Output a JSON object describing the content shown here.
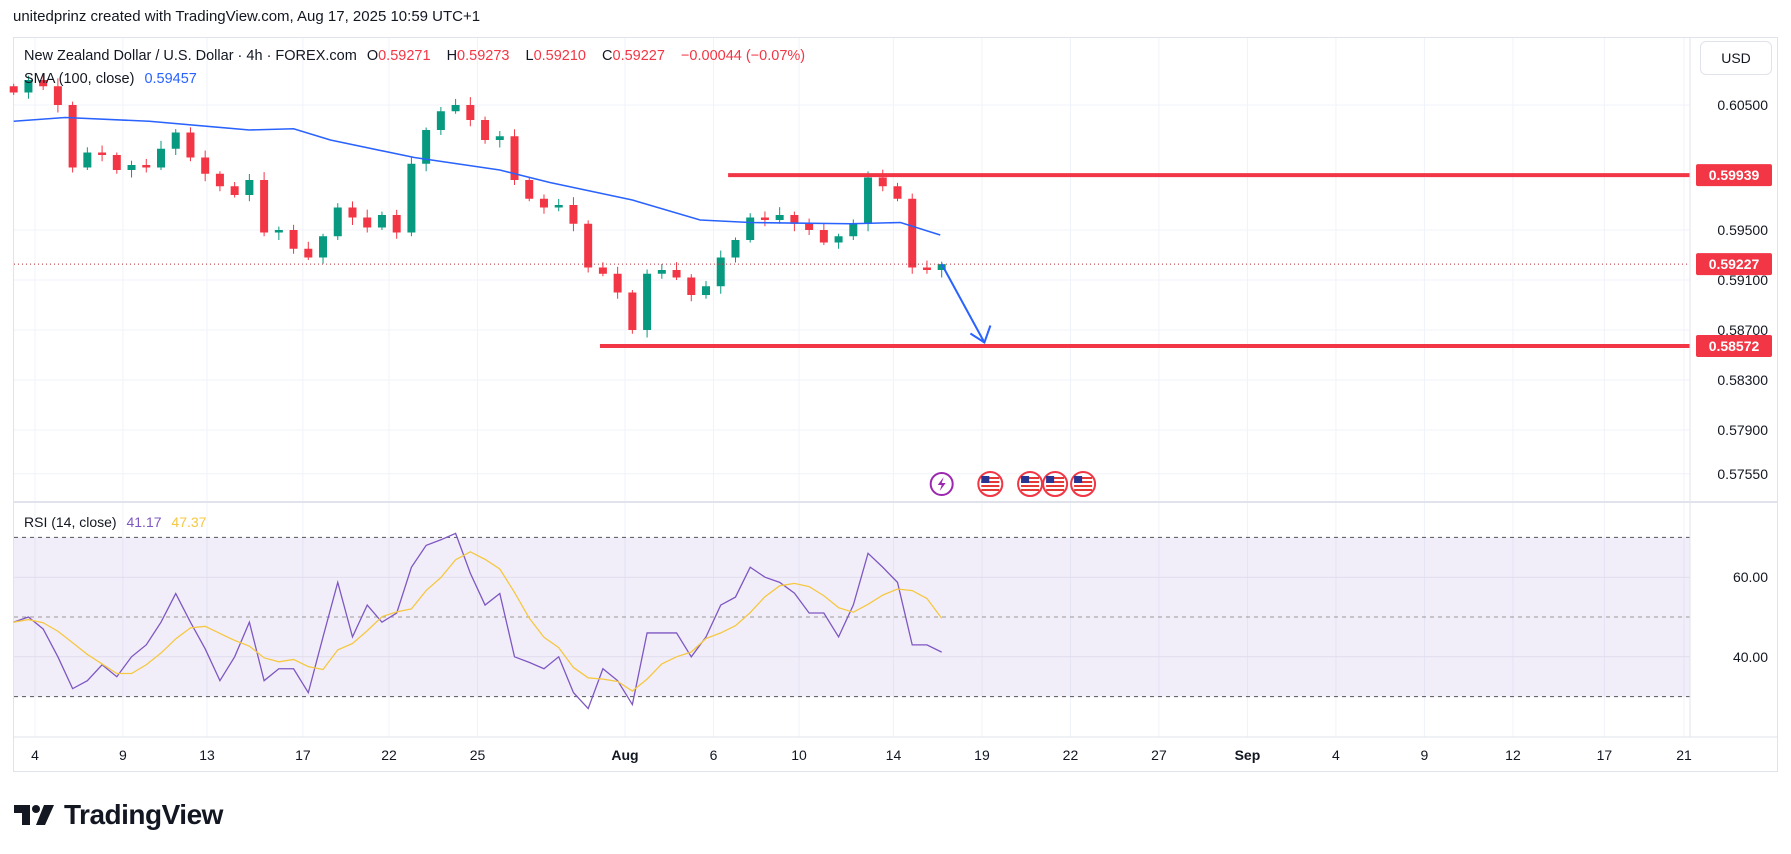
{
  "credit": "unitedprinz created with TradingView.com, Aug 17, 2025 10:59 UTC+1",
  "symbol": {
    "title": "New Zealand Dollar / U.S. Dollar · 4h · FOREX.com",
    "o_label": "O",
    "o": "0.59271",
    "h_label": "H",
    "h": "0.59273",
    "l_label": "L",
    "l": "0.59210",
    "c_label": "C",
    "c": "0.59227",
    "change": "−0.00044 (−0.07%)"
  },
  "sma_legend": {
    "label": "SMA (100, close)",
    "value": "0.59457"
  },
  "rsi_legend": {
    "label": "RSI (14, close)",
    "value": "41.17",
    "signal": "47.37"
  },
  "currency_button": "USD",
  "logo_text": "TradingView",
  "colors": {
    "up": "#089981",
    "down": "#f23645",
    "sma": "#2962ff",
    "rsi": "#7e57c2",
    "signal": "#f5c842",
    "level": "#f23645",
    "arrow": "#2962ff"
  },
  "chart_data": [
    {
      "type": "candlestick",
      "title": "New Zealand Dollar / U.S. Dollar · 4h · FOREX.com",
      "bar_spacing_days": 0.5,
      "closes": [
        0.606,
        0.607,
        0.6065,
        0.605,
        0.6,
        0.6012,
        0.601,
        0.5998,
        0.6002,
        0.6,
        0.6015,
        0.6028,
        0.6008,
        0.5995,
        0.5985,
        0.5978,
        0.599,
        0.5948,
        0.595,
        0.5935,
        0.5928,
        0.5945,
        0.5968,
        0.596,
        0.5952,
        0.5962,
        0.5948,
        0.6003,
        0.603,
        0.6045,
        0.605,
        0.6038,
        0.6022,
        0.6025,
        0.599,
        0.5975,
        0.5968,
        0.597,
        0.5955,
        0.592,
        0.5915,
        0.59,
        0.587,
        0.5915,
        0.5918,
        0.5912,
        0.5898,
        0.5905,
        0.5928,
        0.5942,
        0.596,
        0.5958,
        0.5962,
        0.5955,
        0.595,
        0.594,
        0.5945,
        0.5955,
        0.5992,
        0.5985,
        0.5975,
        0.592,
        0.5918,
        0.59227
      ],
      "sma100": [
        [
          0,
          0.6037
        ],
        [
          3.5,
          0.604
        ],
        [
          9.2,
          0.6037
        ],
        [
          16,
          0.603
        ],
        [
          19,
          0.6031
        ],
        [
          21.5,
          0.6022
        ],
        [
          27.2,
          0.6008
        ],
        [
          33,
          0.5998
        ],
        [
          36.4,
          0.5988
        ],
        [
          42,
          0.5974
        ],
        [
          46.6,
          0.5958
        ],
        [
          50,
          0.5956
        ],
        [
          56.8,
          0.5955
        ],
        [
          60.2,
          0.5956
        ],
        [
          62.9,
          0.5946
        ]
      ],
      "y_ticks": [
        "0.60500",
        "0.59500",
        "0.59100",
        "0.58700",
        "0.58300",
        "0.57900",
        "0.57550"
      ],
      "y_tick_values": [
        0.605,
        0.595,
        0.591,
        0.587,
        0.583,
        0.579,
        0.5755
      ],
      "levels": [
        {
          "label": "0.59939",
          "value": 0.59939,
          "from_bar": 48.5
        },
        {
          "label": "0.58572",
          "value": 0.58572,
          "from_bar": 39.8
        }
      ],
      "last_price": {
        "label": "0.59227",
        "value": 0.59227
      },
      "projection_arrow": {
        "from": [
          63,
          0.59227
        ],
        "to": [
          65.9,
          0.586
        ]
      },
      "events": [
        {
          "type": "lightning",
          "bar": 63
        },
        {
          "type": "us-flag",
          "bar": 66.3
        },
        {
          "type": "us-flag",
          "bar": 69
        },
        {
          "type": "us-flag",
          "bar": 70.7
        },
        {
          "type": "us-flag",
          "bar": 72.6
        }
      ]
    },
    {
      "type": "line",
      "title": "RSI (14, close)",
      "rsi": [
        48.7,
        50,
        47,
        40,
        32,
        34,
        38,
        35,
        40,
        43,
        48.7,
        55.9,
        48.7,
        42,
        34,
        40,
        48.7,
        34,
        37,
        37,
        31,
        45,
        58.7,
        45,
        53,
        48.7,
        51,
        62.5,
        68,
        69.4,
        71,
        61,
        53,
        55.9,
        40,
        38.6,
        37,
        40,
        31,
        27,
        37,
        34,
        28,
        46,
        46,
        46,
        40,
        45,
        53,
        55,
        62.5,
        60,
        58.7,
        56,
        51,
        51,
        45,
        53,
        66,
        62.5,
        58.7,
        43,
        43,
        41.17
      ],
      "bands": {
        "upper": 70,
        "middle": 50,
        "lower": 30
      },
      "y_ticks": [
        "60.00",
        "40.00"
      ],
      "y_tick_values": [
        60,
        40
      ],
      "ylim": [
        22,
        75
      ]
    }
  ],
  "time_axis": [
    {
      "label": "4",
      "day": 0
    },
    {
      "label": "9",
      "day": 2.98
    },
    {
      "label": "13",
      "day": 5.83
    },
    {
      "label": "17",
      "day": 9.08
    },
    {
      "label": "22",
      "day": 12.0
    },
    {
      "label": "25",
      "day": 15.0
    },
    {
      "label": "Aug",
      "day": 20.0,
      "bold": true
    },
    {
      "label": "6",
      "day": 23.0
    },
    {
      "label": "10",
      "day": 25.9
    },
    {
      "label": "14",
      "day": 29.1
    },
    {
      "label": "19",
      "day": 32.1
    },
    {
      "label": "22",
      "day": 35.1
    },
    {
      "label": "27",
      "day": 38.1
    },
    {
      "label": "Sep",
      "day": 41.1,
      "bold": true
    },
    {
      "label": "4",
      "day": 44.1
    },
    {
      "label": "9",
      "day": 47.1
    },
    {
      "label": "12",
      "day": 50.1
    },
    {
      "label": "17",
      "day": 53.2
    },
    {
      "label": "21",
      "day": 55.9
    }
  ]
}
